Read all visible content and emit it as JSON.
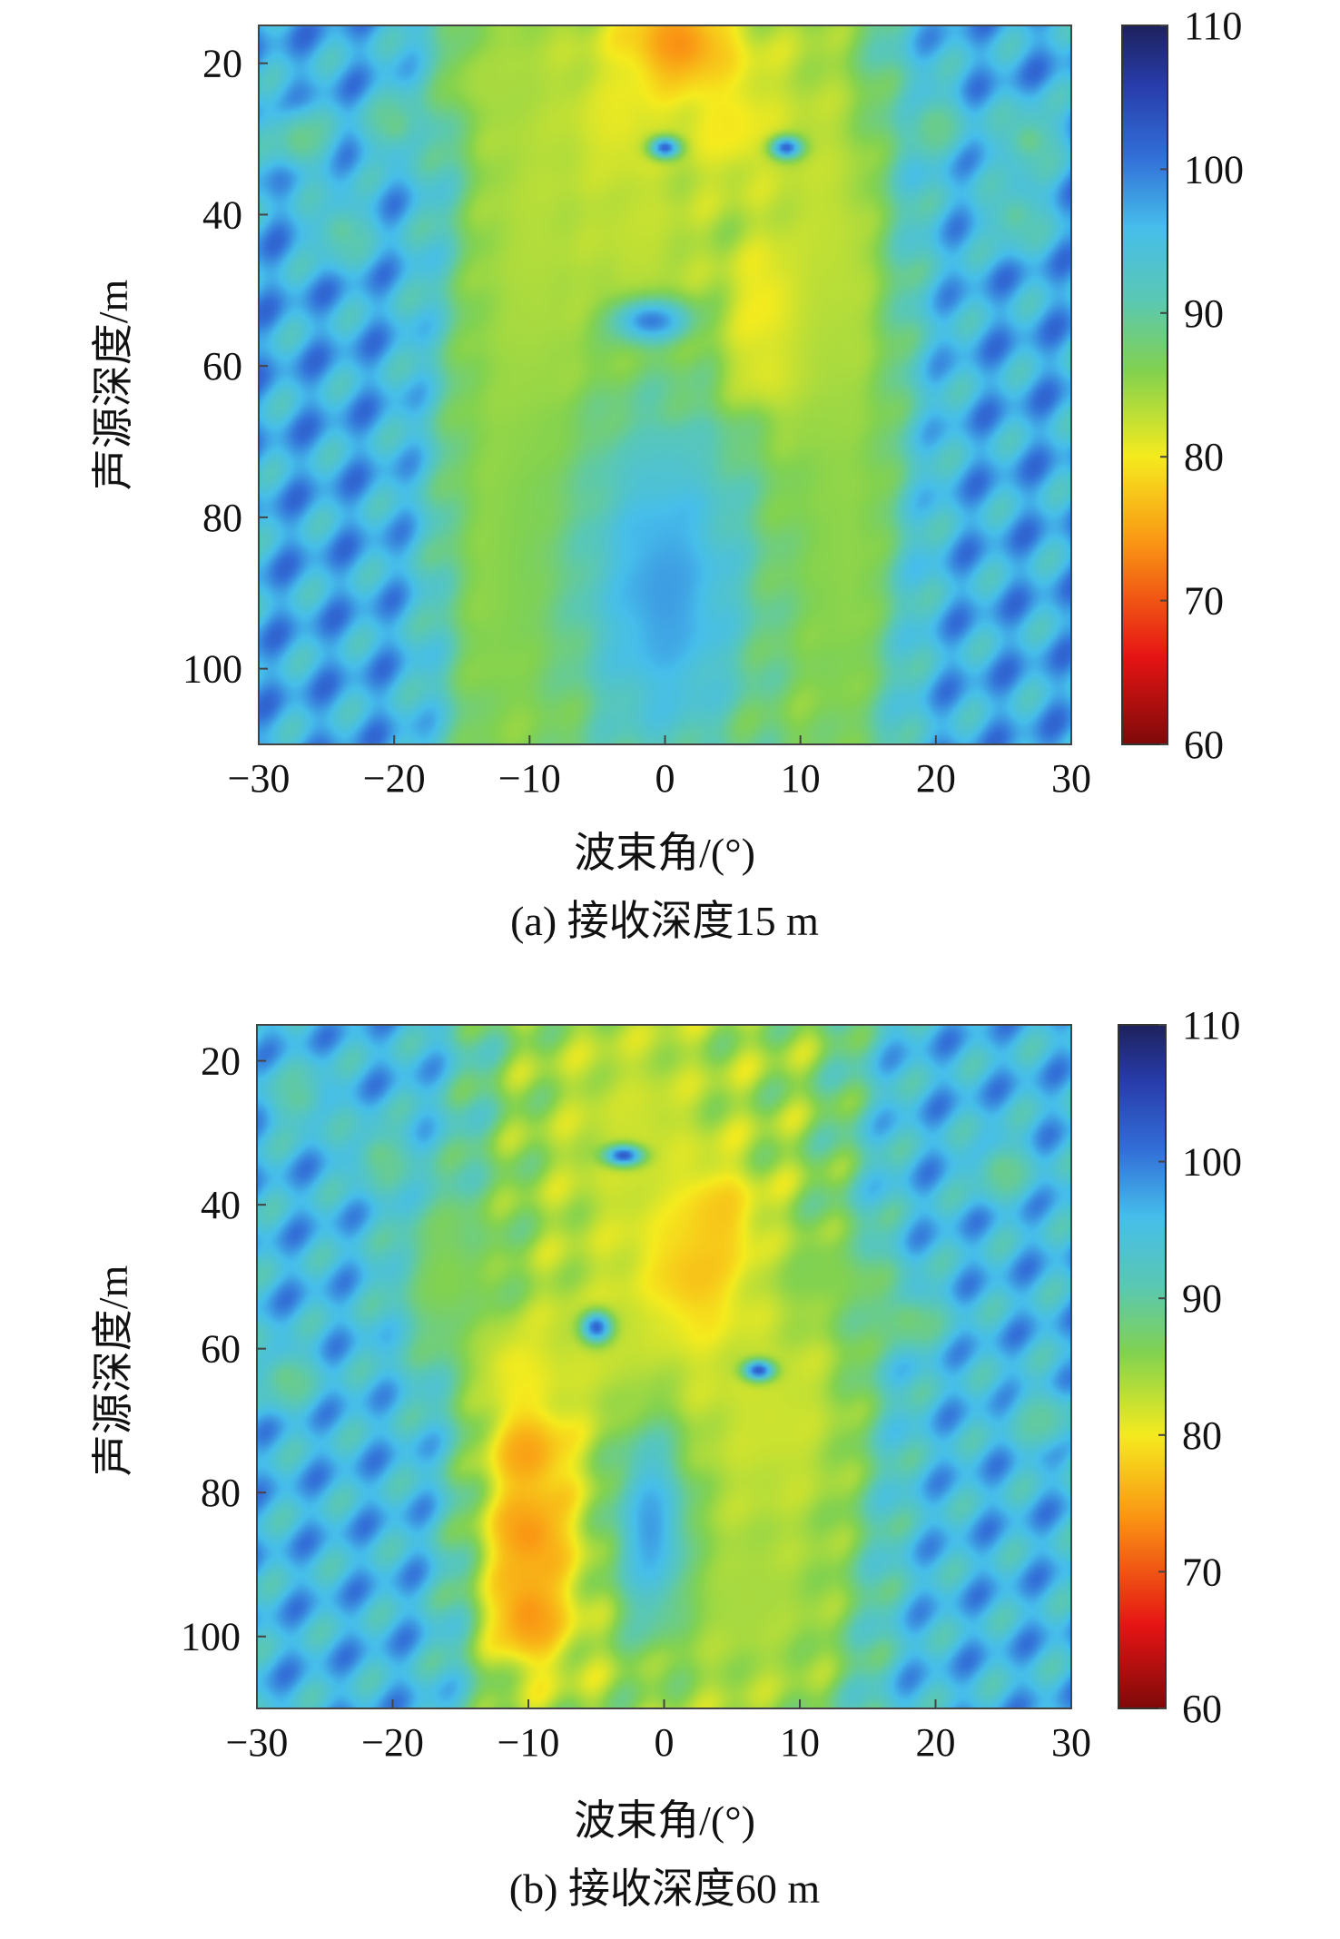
{
  "chart_data": [
    {
      "type": "heatmap",
      "title": "(a) 接收深度15 m",
      "xlabel": "波束角/(°)",
      "ylabel": "声源深度/m",
      "xlim": [
        -30,
        30
      ],
      "ylim": [
        15,
        110
      ],
      "y_reversed": true,
      "x_ticks": [
        -30,
        -20,
        -10,
        0,
        10,
        20,
        30
      ],
      "x_tick_labels": [
        "−30",
        "−20",
        "−10",
        "0",
        "10",
        "20",
        "30"
      ],
      "y_ticks": [
        20,
        40,
        60,
        80,
        100
      ],
      "y_tick_labels": [
        "20",
        "40",
        "60",
        "80",
        "100"
      ],
      "colorbar": {
        "range": [
          60,
          110
        ],
        "ticks": [
          60,
          70,
          80,
          90,
          100,
          110
        ],
        "tick_labels": [
          "60",
          "70",
          "80",
          "90",
          "100",
          "110"
        ],
        "colormap": "jet-reversed"
      },
      "field": {
        "background": 97,
        "stripe_amplitude": 5,
        "blobs": [
          {
            "x": 1,
            "y": 18,
            "sx": 3.5,
            "sy": 5,
            "v": 72
          },
          {
            "x": -4,
            "y": 28,
            "sx": 3,
            "sy": 6,
            "v": 79
          },
          {
            "x": 5,
            "y": 28,
            "sx": 3,
            "sy": 6,
            "v": 79
          },
          {
            "x": 9,
            "y": 52,
            "sx": 3,
            "sy": 6,
            "v": 74
          },
          {
            "x": 9,
            "y": 61,
            "sx": 3,
            "sy": 4,
            "v": 75
          },
          {
            "x": -2,
            "y": 45,
            "sx": 4,
            "sy": 12,
            "v": 82
          },
          {
            "x": -10,
            "y": 50,
            "sx": 4,
            "sy": 40,
            "v": 83
          },
          {
            "x": 12,
            "y": 48,
            "sx": 4,
            "sy": 30,
            "v": 82
          },
          {
            "x": 13,
            "y": 85,
            "sx": 3,
            "sy": 25,
            "v": 85
          },
          {
            "x": -12,
            "y": 85,
            "sx": 3,
            "sy": 25,
            "v": 85
          },
          {
            "x": -13,
            "y": 22,
            "sx": 3,
            "sy": 5,
            "v": 84
          },
          {
            "x": 0,
            "y": 72,
            "sx": 4,
            "sy": 3,
            "v": 85
          },
          {
            "x": 0,
            "y": 90,
            "sx": 5,
            "sy": 18,
            "v": 98
          },
          {
            "x": -1,
            "y": 54,
            "sx": 2,
            "sy": 2,
            "v": 100
          },
          {
            "x": 0,
            "y": 31,
            "sx": 0.8,
            "sy": 1,
            "v": 102
          },
          {
            "x": 9,
            "y": 31,
            "sx": 0.8,
            "sy": 1,
            "v": 102
          },
          {
            "x": -27,
            "y": 30,
            "sx": 1.6,
            "sy": 3,
            "v": 89
          },
          {
            "x": -20,
            "y": 28,
            "sx": 1.6,
            "sy": 3,
            "v": 89
          },
          {
            "x": 20,
            "y": 28,
            "sx": 1.6,
            "sy": 3,
            "v": 89
          },
          {
            "x": 27,
            "y": 30,
            "sx": 1.6,
            "sy": 3,
            "v": 89
          },
          {
            "x": 26,
            "y": 40,
            "sx": 1.6,
            "sy": 3,
            "v": 90
          },
          {
            "x": -24,
            "y": 42,
            "sx": 1.6,
            "sy": 3,
            "v": 90
          }
        ]
      }
    },
    {
      "type": "heatmap",
      "title": "(b) 接收深度60 m",
      "xlabel": "波束角/(°)",
      "ylabel": "声源深度/m",
      "xlim": [
        -30,
        30
      ],
      "ylim": [
        15,
        110
      ],
      "y_reversed": true,
      "x_ticks": [
        -30,
        -20,
        -10,
        0,
        10,
        20,
        30
      ],
      "x_tick_labels": [
        "−30",
        "−20",
        "−10",
        "0",
        "10",
        "20",
        "30"
      ],
      "y_ticks": [
        20,
        40,
        60,
        80,
        100
      ],
      "y_tick_labels": [
        "20",
        "40",
        "60",
        "80",
        "100"
      ],
      "colorbar": {
        "range": [
          60,
          110
        ],
        "ticks": [
          60,
          70,
          80,
          90,
          100,
          110
        ],
        "tick_labels": [
          "60",
          "70",
          "80",
          "90",
          "100",
          "110"
        ],
        "colormap": "jet-reversed"
      },
      "field": {
        "background": 96,
        "stripe_amplitude": 5,
        "blobs": [
          {
            "x": 2,
            "y": 50,
            "sx": 3,
            "sy": 8,
            "v": 72
          },
          {
            "x": 3,
            "y": 42,
            "sx": 2.5,
            "sy": 5,
            "v": 75
          },
          {
            "x": -10,
            "y": 74,
            "sx": 2.5,
            "sy": 6,
            "v": 74
          },
          {
            "x": -10,
            "y": 86,
            "sx": 2.5,
            "sy": 5,
            "v": 74
          },
          {
            "x": -10,
            "y": 97,
            "sx": 2.5,
            "sy": 6,
            "v": 74
          },
          {
            "x": -11,
            "y": 62,
            "sx": 2.5,
            "sy": 4,
            "v": 78
          },
          {
            "x": -2,
            "y": 32,
            "sx": 4,
            "sy": 12,
            "v": 82
          },
          {
            "x": -4,
            "y": 60,
            "sx": 5,
            "sy": 8,
            "v": 82
          },
          {
            "x": 8,
            "y": 70,
            "sx": 5,
            "sy": 14,
            "v": 82
          },
          {
            "x": 6,
            "y": 95,
            "sx": 5,
            "sy": 10,
            "v": 84
          },
          {
            "x": -16,
            "y": 50,
            "sx": 3,
            "sy": 10,
            "v": 86
          },
          {
            "x": 12,
            "y": 50,
            "sx": 3,
            "sy": 4,
            "v": 86
          },
          {
            "x": -1,
            "y": 85,
            "sx": 2,
            "sy": 10,
            "v": 98
          },
          {
            "x": -3,
            "y": 33,
            "sx": 1,
            "sy": 1,
            "v": 103
          },
          {
            "x": 7,
            "y": 63,
            "sx": 0.8,
            "sy": 1,
            "v": 103
          },
          {
            "x": -5,
            "y": 57,
            "sx": 0.8,
            "sy": 1.5,
            "v": 102
          },
          {
            "x": -28,
            "y": 64,
            "sx": 1.6,
            "sy": 3,
            "v": 89
          },
          {
            "x": -21,
            "y": 33,
            "sx": 1.6,
            "sy": 3,
            "v": 89
          },
          {
            "x": 25,
            "y": 35,
            "sx": 1.6,
            "sy": 3,
            "v": 89
          },
          {
            "x": 18,
            "y": 56,
            "sx": 2,
            "sy": 3,
            "v": 88
          },
          {
            "x": -27,
            "y": 25,
            "sx": 1.6,
            "sy": 3,
            "v": 90
          },
          {
            "x": 28,
            "y": 70,
            "sx": 1.6,
            "sy": 3,
            "v": 90
          }
        ]
      }
    }
  ]
}
